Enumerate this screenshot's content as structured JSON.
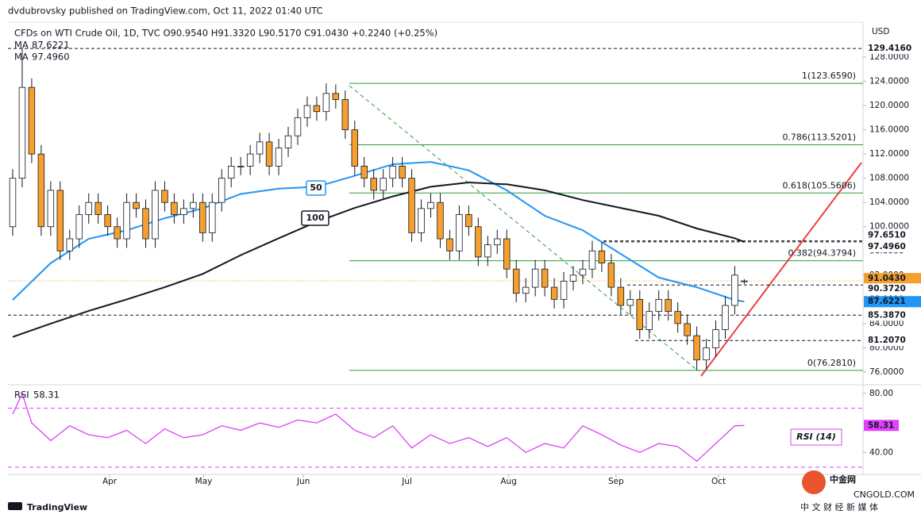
{
  "header": {
    "publisher": "dvdubrovsky published on TradingView.com, Oct 11, 2022 01:40 UTC",
    "symbol": "CFDs on WTI Crude Oil, 1D, TVC  O90.9540 H91.3320 L90.5170 C91.0430 +0.2240 (+0.25%)",
    "currency": "USD"
  },
  "footer": {
    "brand": "TradingView",
    "watermark": "中金网",
    "watermark_url": "CNGOLD.COM",
    "watermark_sub": "中 文 财 经 新 媒 体"
  },
  "chart_data": {
    "type": "candlestick",
    "up_color": "#ffffff",
    "down_color": "#f5a02e",
    "wick_color": "#131722",
    "open": [
      100,
      108,
      123,
      112,
      100,
      106,
      96,
      98,
      102,
      104,
      102,
      100,
      98,
      104,
      103,
      98,
      106,
      104,
      102,
      103,
      104,
      99,
      104,
      108,
      110,
      110,
      112,
      114,
      110,
      113,
      115,
      118,
      120,
      119,
      122,
      121,
      116,
      110,
      108,
      106,
      108,
      110,
      108,
      99,
      103,
      104,
      98,
      96,
      102,
      100,
      95,
      97,
      98,
      93,
      89,
      90,
      93,
      90,
      88,
      91,
      92,
      93,
      96,
      94,
      90,
      87,
      88,
      83,
      86,
      88,
      86,
      84,
      82,
      78,
      80,
      83,
      87,
      90.954
    ],
    "high": [
      109.5,
      129.416,
      124.5,
      113.5,
      107.5,
      107.5,
      99.5,
      103.5,
      105.5,
      105.5,
      103.5,
      101.5,
      105.5,
      105.5,
      104.5,
      107.5,
      107.5,
      105.5,
      104.5,
      105.5,
      105.5,
      105.5,
      109.5,
      111.5,
      111.5,
      113.5,
      115.5,
      115.5,
      114.5,
      116.5,
      119.5,
      121.5,
      121.5,
      123.659,
      123.5,
      122.5,
      117.5,
      111.5,
      109.5,
      109.5,
      111.5,
      111.5,
      109.5,
      104.5,
      105.5,
      105.5,
      99.5,
      103.5,
      103.5,
      101.5,
      98.5,
      99.5,
      99.5,
      94.5,
      91.5,
      94.5,
      94.5,
      91.5,
      92.5,
      93.5,
      94.5,
      97.651,
      97.5,
      95.5,
      91.5,
      89.5,
      89.5,
      87.5,
      89.5,
      89.5,
      87.5,
      85.5,
      83.5,
      81.5,
      84.5,
      88.5,
      93.5,
      91.332
    ],
    "low": [
      98.5,
      106.5,
      110.5,
      98.5,
      98.5,
      94.5,
      94.5,
      96.5,
      100.5,
      100.5,
      98.5,
      96.5,
      96.5,
      101.5,
      96.5,
      96.5,
      102.5,
      100.5,
      100.5,
      101.5,
      97.5,
      97.5,
      102.5,
      106.5,
      108.5,
      108.5,
      110.5,
      108.5,
      108.5,
      111.5,
      113.5,
      116.5,
      117.5,
      117.5,
      119.5,
      114.5,
      108.5,
      106.5,
      104.5,
      104.5,
      106.5,
      106.5,
      97.5,
      97.5,
      101.5,
      96.5,
      94.5,
      94.5,
      98.5,
      93.5,
      93.5,
      95.5,
      91.5,
      87.5,
      87.5,
      88.5,
      88.5,
      86.5,
      86.5,
      89.5,
      90.5,
      91.5,
      92.5,
      88.5,
      85.5,
      85.5,
      81.5,
      81.5,
      84.5,
      84.5,
      82.5,
      80.5,
      76.281,
      76.5,
      78.5,
      81.5,
      85.5,
      90.517
    ],
    "close": [
      108,
      123,
      112,
      100,
      106,
      96,
      98,
      102,
      104,
      102,
      100,
      98,
      104,
      103,
      98,
      106,
      104,
      102,
      103,
      104,
      99,
      104,
      108,
      110,
      110,
      112,
      114,
      110,
      113,
      115,
      118,
      120,
      119,
      122,
      121,
      116,
      110,
      108,
      106,
      108,
      110,
      108,
      99,
      103,
      104,
      98,
      96,
      102,
      100,
      95,
      97,
      98,
      93,
      89,
      90,
      93,
      90,
      88,
      91,
      92,
      93,
      96,
      94,
      90,
      87,
      88,
      83,
      86,
      88,
      86,
      84,
      82,
      78,
      80,
      83,
      87,
      92,
      91.043
    ],
    "xlim": [
      -0.5,
      89.5
    ],
    "xticks": [
      {
        "value": 10.2,
        "label": "Apr"
      },
      {
        "value": 20.1,
        "label": "May"
      },
      {
        "value": 30.6,
        "label": "Jun"
      },
      {
        "value": 41.5,
        "label": "Jul"
      },
      {
        "value": 52.2,
        "label": "Aug"
      },
      {
        "value": 63.5,
        "label": "Sep"
      },
      {
        "value": 74.3,
        "label": "Oct"
      }
    ],
    "ylim": [
      73.9,
      133.5
    ],
    "yticks": [
      {
        "value": 76,
        "label": "76.0000"
      },
      {
        "value": 80,
        "label": "80.0000"
      },
      {
        "value": 84,
        "label": "84.0000"
      },
      {
        "value": 88,
        "label": "88.0000"
      },
      {
        "value": 92,
        "label": "92.0000"
      },
      {
        "value": 96,
        "label": "96.0000"
      },
      {
        "value": 100,
        "label": "100.0000"
      },
      {
        "value": 104,
        "label": "104.0000"
      },
      {
        "value": 108,
        "label": "108.0000"
      },
      {
        "value": 112,
        "label": "112.0000"
      },
      {
        "value": 116,
        "label": "116.0000"
      },
      {
        "value": 120,
        "label": "120.0000"
      },
      {
        "value": 124,
        "label": "124.0000"
      },
      {
        "value": 128,
        "label": "128.0000"
      }
    ],
    "series": [
      {
        "name": "50",
        "legend": "MA",
        "legend_value": "87.6221",
        "color": "#2196f3",
        "x": [
          0,
          4,
          8,
          12,
          16,
          20,
          24,
          28,
          32,
          36,
          40,
          44,
          48,
          52,
          56,
          60,
          64,
          68,
          72,
          76,
          77
        ],
        "values": [
          87.9,
          94,
          98,
          99.4,
          101.4,
          103,
          105.4,
          106.3,
          106.6,
          108.4,
          110.3,
          110.7,
          109.3,
          106,
          101.8,
          99.4,
          95.5,
          91.6,
          90,
          87.9,
          87.6221
        ]
      },
      {
        "name": "100",
        "legend": "MA",
        "legend_value": "97.4960",
        "color": "#131722",
        "x": [
          0,
          4,
          8,
          12,
          16,
          20,
          24,
          28,
          32,
          36,
          40,
          44,
          48,
          52,
          56,
          60,
          64,
          68,
          72,
          76,
          77
        ],
        "values": [
          81.8,
          84,
          86.1,
          88,
          90,
          92.2,
          95.3,
          98.1,
          100.8,
          103.1,
          105,
          106.6,
          107.3,
          107,
          106,
          104.4,
          103.1,
          101.8,
          99.7,
          98.1,
          97.496
        ]
      }
    ],
    "fib_levels": [
      {
        "value": 123.659,
        "label": "1(123.6590)"
      },
      {
        "value": 113.5201,
        "label": "0.786(113.5201)"
      },
      {
        "value": 105.5606,
        "label": "0.618(105.5606)"
      },
      {
        "value": 94.3794,
        "label": "0.382(94.3794)"
      },
      {
        "value": 76.281,
        "label": "0(76.2810)"
      }
    ],
    "price_badges": [
      {
        "value": 129.416,
        "label": "129.4160"
      },
      {
        "value": 97.651,
        "label": "97.6510"
      },
      {
        "value": 97.496,
        "label": "97.4960"
      },
      {
        "value": 91.043,
        "label": "91.0430"
      },
      {
        "value": 90.372,
        "label": "90.3720"
      },
      {
        "value": 87.6221,
        "label": "87.6221"
      },
      {
        "value": 85.387,
        "label": "85.3870"
      },
      {
        "value": 81.207,
        "label": "81.2070"
      }
    ],
    "rsi": {
      "name": "RSI",
      "title": "RSI (14)",
      "value_label": "58.31",
      "color": "#e040fb",
      "ylim": [
        24,
        84.3
      ],
      "yticks": [
        {
          "value": 80,
          "label": "80.00"
        },
        {
          "value": 40,
          "label": "40.00"
        }
      ],
      "bands": [
        70,
        30
      ],
      "x": [
        0,
        1,
        2,
        4,
        6,
        8,
        10,
        12,
        14,
        16,
        18,
        20,
        22,
        24,
        26,
        28,
        30,
        32,
        34,
        36,
        38,
        40,
        42,
        44,
        46,
        48,
        50,
        52,
        54,
        56,
        58,
        60,
        62,
        64,
        66,
        68,
        70,
        72,
        74,
        76,
        77
      ],
      "values": [
        66,
        80,
        60,
        48,
        58,
        52,
        50,
        55,
        46,
        56,
        50,
        52,
        58,
        55,
        60,
        57,
        62,
        60,
        66,
        55,
        50,
        58,
        43,
        52,
        46,
        50,
        44,
        50,
        40,
        46,
        43,
        58,
        52,
        45,
        40,
        46,
        44,
        34,
        46,
        58,
        58.31
      ]
    }
  }
}
